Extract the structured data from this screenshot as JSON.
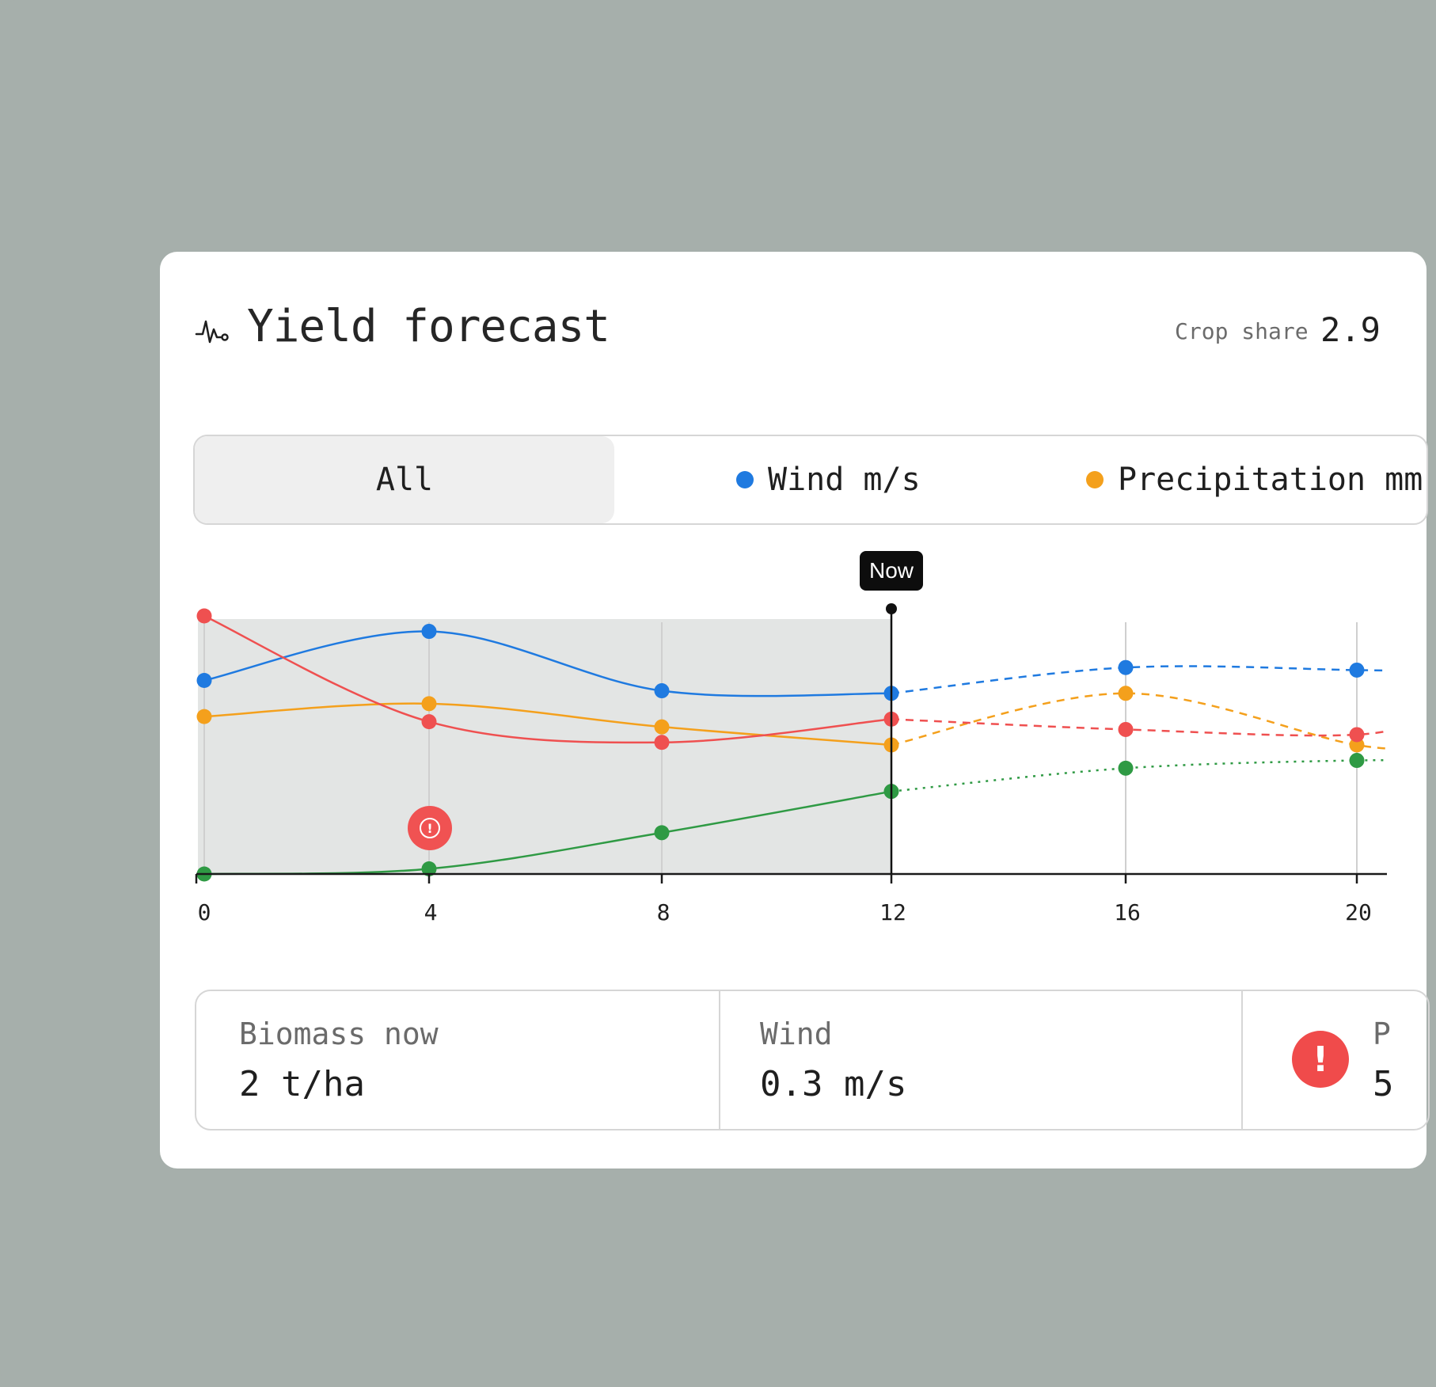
{
  "header": {
    "title": "Yield forecast",
    "icon": "activity-pulse-icon",
    "crop_share_label": "Crop share",
    "crop_share_value": "2.9"
  },
  "filters": {
    "all_label": "All",
    "items": [
      {
        "label": "Wind m/s",
        "color": "#1f7ae0"
      },
      {
        "label": "Precipitation mm",
        "color": "#f4a01c"
      }
    ]
  },
  "now_label": "Now",
  "alert_icon": "alert-circle-icon",
  "chart_data": {
    "type": "line",
    "x_ticks": [
      "0",
      "4",
      "8",
      "12",
      "16",
      "20"
    ],
    "now_x": 12,
    "series": [
      {
        "name": "Wind m/s",
        "color": "#1f7ae0",
        "style": "dashed-forecast",
        "points": [
          [
            0,
            0.75
          ],
          [
            4,
            0.94
          ],
          [
            8,
            0.71
          ],
          [
            12,
            0.7
          ],
          [
            16,
            0.8
          ],
          [
            20,
            0.79
          ]
        ]
      },
      {
        "name": "Precipitation mm",
        "color": "#f4a01c",
        "style": "dashed-forecast",
        "points": [
          [
            0,
            0.61
          ],
          [
            4,
            0.66
          ],
          [
            8,
            0.57
          ],
          [
            12,
            0.5
          ],
          [
            16,
            0.7
          ],
          [
            20,
            0.5
          ]
        ]
      },
      {
        "color": "#ef5050",
        "style": "dashed-forecast",
        "points": [
          [
            0,
            1.0
          ],
          [
            4,
            0.59
          ],
          [
            8,
            0.51
          ],
          [
            12,
            0.6
          ],
          [
            16,
            0.56
          ],
          [
            20,
            0.54
          ]
        ]
      },
      {
        "color": "#2f9a44",
        "style": "dotted-forecast",
        "points": [
          [
            0,
            0.0
          ],
          [
            4,
            0.02
          ],
          [
            8,
            0.16
          ],
          [
            12,
            0.32
          ],
          [
            16,
            0.41
          ],
          [
            20,
            0.44
          ]
        ]
      }
    ],
    "grid": true
  },
  "stats": [
    {
      "label": "Biomass now",
      "value": "2 t/ha"
    },
    {
      "label": "Wind",
      "value": "0.3 m/s"
    },
    {
      "label": "P",
      "value": "5"
    }
  ]
}
